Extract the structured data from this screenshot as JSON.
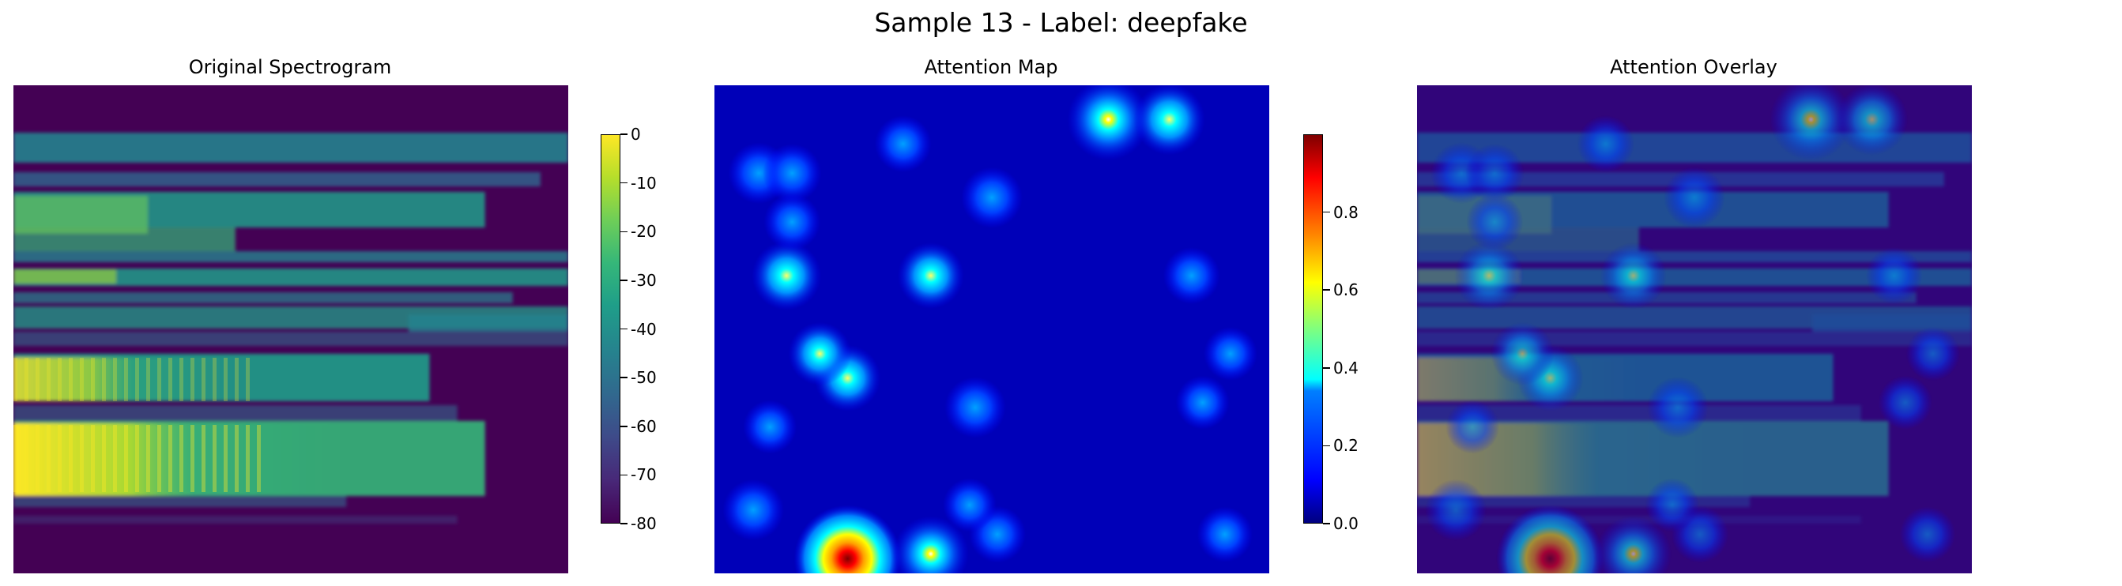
{
  "figure": {
    "suptitle": "Sample 13 - Label: deepfake"
  },
  "panels": [
    {
      "title": "Original Spectrogram"
    },
    {
      "title": "Attention Map"
    },
    {
      "title": "Attention Overlay"
    }
  ],
  "colorbars": [
    {
      "colormap": "viridis",
      "vmin": -80,
      "vmax": 0,
      "ticks": [
        "0",
        "-10",
        "-20",
        "-30",
        "-40",
        "-50",
        "-60",
        "-70",
        "-80"
      ],
      "tick_values": [
        0,
        -10,
        -20,
        -30,
        -40,
        -50,
        -60,
        -70,
        -80
      ]
    },
    {
      "colormap": "jet",
      "vmin": 0,
      "vmax": 1,
      "ticks": [
        "0.8",
        "0.6",
        "0.4",
        "0.2",
        "0.0"
      ],
      "tick_values": [
        0.8,
        0.6,
        0.4,
        0.2,
        0.0
      ]
    }
  ],
  "chart_data": [
    {
      "type": "heatmap",
      "title": "Original Spectrogram",
      "colormap": "viridis",
      "value_range": [
        -80,
        0
      ],
      "axes": "off"
    },
    {
      "type": "heatmap",
      "title": "Attention Map",
      "colormap": "jet",
      "value_range": [
        0,
        1
      ],
      "axes": "off",
      "hotspots": [
        {
          "col": 0.24,
          "row": 0.97,
          "value": 0.95
        },
        {
          "col": 0.71,
          "row": 0.07,
          "value": 0.55
        },
        {
          "col": 0.39,
          "row": 0.96,
          "value": 0.45
        },
        {
          "col": 0.82,
          "row": 0.07,
          "value": 0.38
        },
        {
          "col": 0.13,
          "row": 0.39,
          "value": 0.35
        },
        {
          "col": 0.39,
          "row": 0.39,
          "value": 0.3
        },
        {
          "col": 0.24,
          "row": 0.6,
          "value": 0.3
        },
        {
          "col": 0.19,
          "row": 0.55,
          "value": 0.25
        },
        {
          "col": 0.08,
          "row": 0.18,
          "value": 0.22
        },
        {
          "col": 0.5,
          "row": 0.23,
          "value": 0.22
        },
        {
          "col": 0.47,
          "row": 0.66,
          "value": 0.22
        },
        {
          "col": 0.07,
          "row": 0.87,
          "value": 0.22
        },
        {
          "col": 0.14,
          "row": 0.18,
          "value": 0.18
        },
        {
          "col": 0.34,
          "row": 0.12,
          "value": 0.15
        },
        {
          "col": 0.14,
          "row": 0.28,
          "value": 0.15
        },
        {
          "col": 0.51,
          "row": 0.92,
          "value": 0.15
        },
        {
          "col": 0.86,
          "row": 0.39,
          "value": 0.15
        },
        {
          "col": 0.92,
          "row": 0.92,
          "value": 0.13
        },
        {
          "col": 0.46,
          "row": 0.86,
          "value": 0.1
        },
        {
          "col": 0.93,
          "row": 0.55,
          "value": 0.1
        },
        {
          "col": 0.88,
          "row": 0.65,
          "value": 0.1
        },
        {
          "col": 0.1,
          "row": 0.7,
          "value": 0.1
        }
      ]
    },
    {
      "type": "heatmap",
      "title": "Attention Overlay",
      "colormap": "jet over viridis",
      "axes": "off"
    }
  ]
}
